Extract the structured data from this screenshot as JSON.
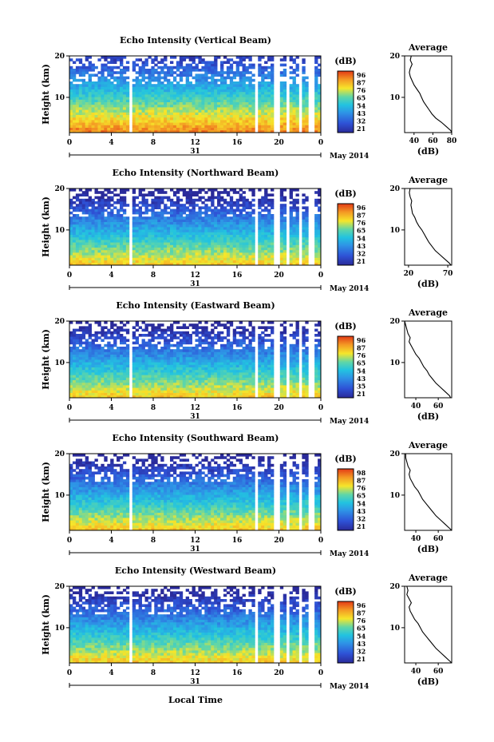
{
  "figure": {
    "date_label": "May 2014",
    "day_label": "31",
    "x_axis_title": "Local Time",
    "y_axis_title": "Height (km)",
    "colorbar_unit": "(dB)",
    "average_title": "Average",
    "average_xlabel": "(dB)"
  },
  "colors": {
    "low": "#2a2a9a",
    "mid": "#22c3e0",
    "high": "#f6e62a",
    "top": "#e23a16"
  },
  "chart_data": [
    {
      "type": "heatmap",
      "title": "Echo Intensity (Vertical Beam)",
      "x_ticks": [
        "0",
        "4",
        "8",
        "12",
        "16",
        "20",
        "0"
      ],
      "y_ticks": [
        "10",
        "20"
      ],
      "xlim": [
        0,
        24
      ],
      "ylim": [
        1.5,
        20
      ],
      "colorbar_ticks": [
        "96",
        "87",
        "76",
        "65",
        "54",
        "43",
        "32",
        "21"
      ],
      "gaps": [
        [
          5.6,
          5.9
        ],
        [
          17.6,
          17.9
        ],
        [
          19.5,
          20.0
        ],
        [
          20.6,
          21.1
        ],
        [
          21.8,
          22.2
        ],
        [
          22.9,
          23.3
        ]
      ],
      "profile": {
        "x_ticks": [
          "40",
          "60",
          "80"
        ],
        "xlim": [
          30,
          80
        ],
        "y_ticks": [
          "10",
          "20"
        ],
        "ylim": [
          1.5,
          20
        ],
        "heights": [
          1.5,
          2,
          3,
          4,
          5,
          6,
          7,
          8,
          9,
          10,
          11,
          12,
          13,
          14,
          15,
          16,
          17,
          18,
          19,
          20
        ],
        "values": [
          80,
          79,
          74,
          69,
          63,
          59,
          56,
          53,
          50,
          48,
          46,
          43,
          40,
          38,
          36,
          35,
          36,
          38,
          36,
          37
        ]
      }
    },
    {
      "type": "heatmap",
      "title": "Echo Intensity (Northward Beam)",
      "x_ticks": [
        "0",
        "4",
        "8",
        "12",
        "16",
        "20",
        "0"
      ],
      "y_ticks": [
        "10",
        "20"
      ],
      "xlim": [
        0,
        24
      ],
      "ylim": [
        1.5,
        20
      ],
      "colorbar_ticks": [
        "96",
        "87",
        "76",
        "65",
        "54",
        "43",
        "32",
        "21"
      ],
      "gaps": [
        [
          5.6,
          5.9
        ],
        [
          17.6,
          17.9
        ],
        [
          19.5,
          20.0
        ],
        [
          20.6,
          21.1
        ],
        [
          21.8,
          22.2
        ],
        [
          22.9,
          23.3
        ]
      ],
      "profile": {
        "x_ticks": [
          "20",
          "70"
        ],
        "xlim": [
          15,
          75
        ],
        "y_ticks": [
          "10",
          "20"
        ],
        "ylim": [
          1.5,
          20
        ],
        "heights": [
          1.5,
          2,
          3,
          4,
          5,
          6,
          7,
          8,
          9,
          10,
          11,
          12,
          13,
          14,
          15,
          16,
          17,
          18,
          19,
          20
        ],
        "values": [
          74,
          72,
          66,
          60,
          54,
          50,
          46,
          43,
          40,
          37,
          33,
          30,
          28,
          25,
          24,
          23,
          24,
          22,
          21,
          22
        ]
      }
    },
    {
      "type": "heatmap",
      "title": "Echo Intensity (Eastward Beam)",
      "x_ticks": [
        "0",
        "4",
        "8",
        "12",
        "16",
        "20",
        "0"
      ],
      "y_ticks": [
        "10",
        "20"
      ],
      "xlim": [
        0,
        24
      ],
      "ylim": [
        1.5,
        20
      ],
      "colorbar_ticks": [
        "96",
        "87",
        "76",
        "65",
        "54",
        "43",
        "35",
        "21"
      ],
      "gaps": [
        [
          5.6,
          5.9
        ],
        [
          17.6,
          17.9
        ],
        [
          19.5,
          20.0
        ],
        [
          20.6,
          21.1
        ],
        [
          21.8,
          22.2
        ],
        [
          22.9,
          23.3
        ]
      ],
      "profile": {
        "x_ticks": [
          "40",
          "60"
        ],
        "xlim": [
          30,
          72
        ],
        "y_ticks": [
          "10",
          "20"
        ],
        "ylim": [
          1.5,
          20
        ],
        "heights": [
          1.5,
          2,
          3,
          4,
          5,
          6,
          7,
          8,
          9,
          10,
          11,
          12,
          13,
          14,
          15,
          16,
          17,
          18,
          19,
          20
        ],
        "values": [
          71,
          70,
          66,
          62,
          58,
          55,
          52,
          50,
          47,
          45,
          43,
          40,
          38,
          36,
          34,
          35,
          33,
          32,
          31,
          30
        ]
      }
    },
    {
      "type": "heatmap",
      "title": "Echo Intensity (Southward Beam)",
      "x_ticks": [
        "0",
        "4",
        "8",
        "12",
        "16",
        "20",
        "0"
      ],
      "y_ticks": [
        "10",
        "20"
      ],
      "xlim": [
        0,
        24
      ],
      "ylim": [
        1.5,
        20
      ],
      "colorbar_ticks": [
        "98",
        "87",
        "76",
        "65",
        "54",
        "43",
        "32",
        "21"
      ],
      "gaps": [
        [
          5.6,
          5.9
        ],
        [
          17.6,
          17.9
        ],
        [
          19.5,
          20.0
        ],
        [
          20.6,
          21.1
        ],
        [
          21.8,
          22.2
        ],
        [
          22.9,
          23.3
        ]
      ],
      "profile": {
        "x_ticks": [
          "40",
          "60"
        ],
        "xlim": [
          30,
          72
        ],
        "y_ticks": [
          "10",
          "20"
        ],
        "ylim": [
          1.5,
          20
        ],
        "heights": [
          1.5,
          2,
          3,
          4,
          5,
          6,
          7,
          8,
          9,
          10,
          11,
          12,
          13,
          14,
          15,
          16,
          17,
          18,
          19,
          20
        ],
        "values": [
          72,
          70,
          66,
          62,
          58,
          55,
          52,
          49,
          46,
          44,
          42,
          39,
          37,
          35,
          34,
          35,
          33,
          32,
          31,
          31
        ]
      }
    },
    {
      "type": "heatmap",
      "title": "Echo Intensity (Westward Beam)",
      "x_ticks": [
        "0",
        "4",
        "8",
        "12",
        "16",
        "20",
        "0"
      ],
      "y_ticks": [
        "10",
        "20"
      ],
      "xlim": [
        0,
        24
      ],
      "ylim": [
        1.5,
        20
      ],
      "colorbar_ticks": [
        "96",
        "87",
        "76",
        "65",
        "54",
        "43",
        "32",
        "21"
      ],
      "gaps": [
        [
          5.6,
          5.9
        ],
        [
          17.6,
          17.9
        ],
        [
          19.5,
          20.0
        ],
        [
          20.6,
          21.1
        ],
        [
          21.8,
          22.2
        ],
        [
          22.9,
          23.3
        ]
      ],
      "profile": {
        "x_ticks": [
          "40",
          "60"
        ],
        "xlim": [
          30,
          72
        ],
        "y_ticks": [
          "10",
          "20"
        ],
        "ylim": [
          1.5,
          20
        ],
        "heights": [
          1.5,
          2,
          3,
          4,
          5,
          6,
          7,
          8,
          9,
          10,
          11,
          12,
          13,
          14,
          15,
          16,
          17,
          18,
          19,
          20
        ],
        "values": [
          72,
          70,
          66,
          62,
          58,
          55,
          52,
          49,
          46,
          44,
          42,
          39,
          37,
          35,
          34,
          36,
          34,
          32,
          33,
          32
        ]
      }
    }
  ]
}
